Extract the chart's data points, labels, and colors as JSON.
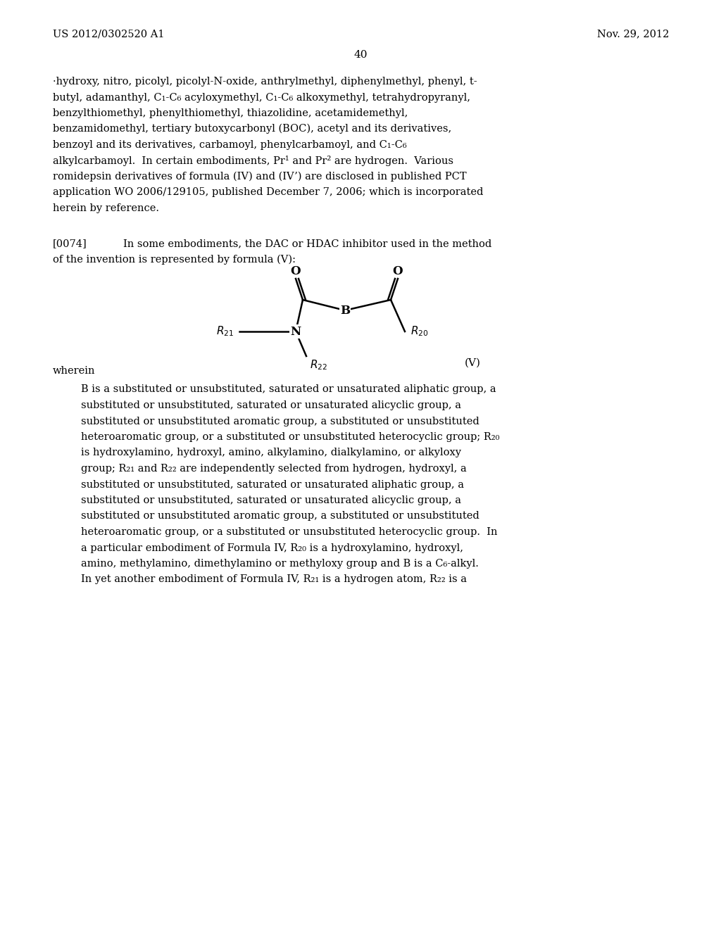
{
  "header_left": "US 2012/0302520 A1",
  "header_right": "Nov. 29, 2012",
  "page_number": "40",
  "background_color": "#ffffff",
  "text_color": "#000000",
  "font_family": "serif",
  "body_lines": [
    "·hydroxy, nitro, picolyl, picolyl-N-oxide, anthrylmethyl, diphenylmethyl, phenyl, t-",
    "butyl, adamanthyl, C₁-C₆ acyloxymethyl, C₁-C₆ alkoxymethyl, tetrahydropyranyl,",
    "benzylthiomethyl, phenylthiomethyl, thiazolidine, acetamidemethyl,",
    "benzamidomethyl, tertiary butoxycarbonyl (BOC), acetyl and its derivatives,",
    "benzoyl and its derivatives, carbamoyl, phenylcarbamoyl, and C₁-C₆",
    "alkylcarbamoyl.  In certain embodiments, Pr¹ and Pr² are hydrogen.  Various",
    "romidepsin derivatives of formula (IV) and (IV’) are disclosed in published PCT",
    "application WO 2006/129105, published December 7, 2006; which is incorporated",
    "herein by reference."
  ],
  "para_0074_label": "[0074]",
  "para_0074_text": "In some embodiments, the DAC or HDAC inhibitor used in the method",
  "para_0074_text2": "of the invention is represented by formula (V):",
  "wherein_text": "wherein",
  "definition_lines": [
    "B is a substituted or unsubstituted, saturated or unsaturated aliphatic group, a",
    "substituted or unsubstituted, saturated or unsaturated alicyclic group, a",
    "substituted or unsubstituted aromatic group, a substituted or unsubstituted",
    "heteroaromatic group, or a substituted or unsubstituted heterocyclic group; R₂₀",
    "is hydroxylamino, hydroxyl, amino, alkylamino, dialkylamino, or alkyloxy",
    "group; R₂₁ and R₂₂ are independently selected from hydrogen, hydroxyl, a",
    "substituted or unsubstituted, saturated or unsaturated aliphatic group, a",
    "substituted or unsubstituted, saturated or unsaturated alicyclic group, a",
    "substituted or unsubstituted aromatic group, a substituted or unsubstituted",
    "heteroaromatic group, or a substituted or unsubstituted heterocyclic group.  In",
    "a particular embodiment of Formula IV, R₂₀ is a hydroxylamino, hydroxyl,",
    "amino, methylamino, dimethylamino or methyloxy group and B is a C₆-alkyl.",
    "In yet another embodiment of Formula IV, R₂₁ is a hydrogen atom, R₂₂ is a"
  ]
}
